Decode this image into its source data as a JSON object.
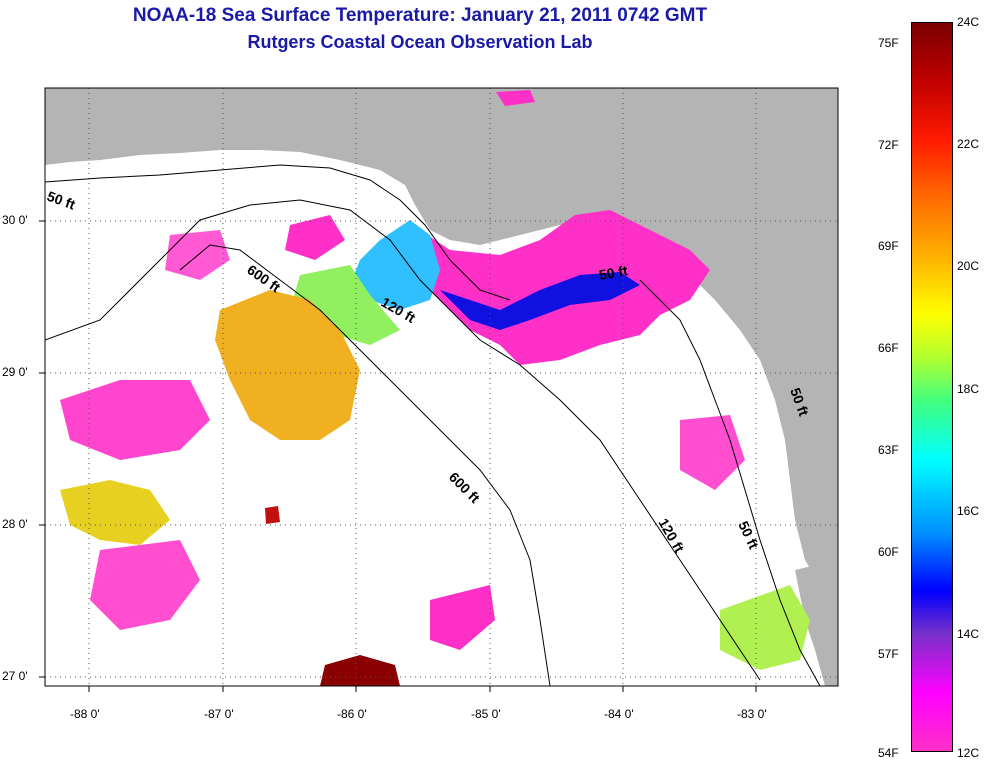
{
  "title": "NOAA-18 Sea Surface Temperature:  January 21, 2011 0742 GMT",
  "subtitle": "Rutgers Coastal Ocean Observation Lab",
  "lat_labels": [
    "30 0'",
    "29 0'",
    "28 0'",
    "27 0'"
  ],
  "lon_labels": [
    "-88 0'",
    "-87 0'",
    "-86 0'",
    "-85 0'",
    "-84 0'",
    "-83 0'"
  ],
  "contour_labels": [
    "50 ft",
    "600 ft",
    "120 ft",
    "50 ft",
    "600 ft",
    "120 ft",
    "50 ft",
    "50 ft"
  ],
  "colorbar": {
    "fahrenheit": [
      "75F",
      "72F",
      "69F",
      "66F",
      "63F",
      "60F",
      "57F",
      "54F"
    ],
    "celsius": [
      "24C",
      "22C",
      "20C",
      "18C",
      "16C",
      "14C",
      "12C"
    ]
  },
  "colors": {
    "land": "#b4b4b4",
    "cloud": "#ffffff",
    "title": "#1a1aa6",
    "warm": "#f0b020",
    "cool": "#30c0ff",
    "cold": "#ff30c8"
  }
}
